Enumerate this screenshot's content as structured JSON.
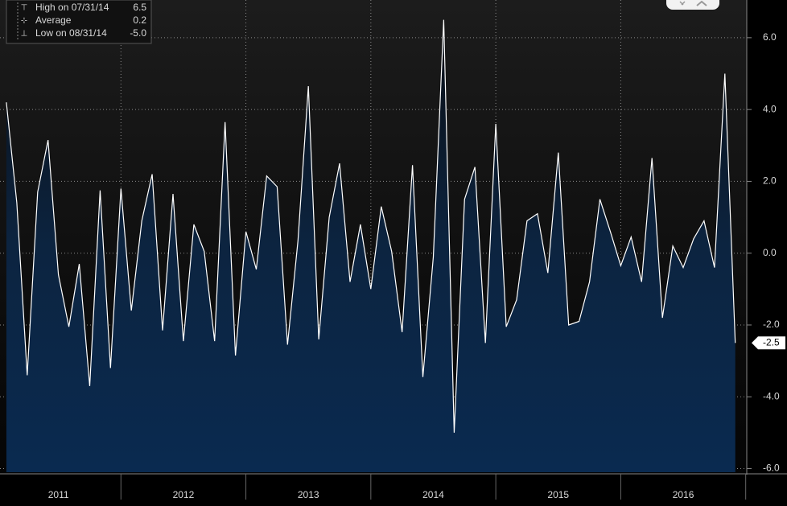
{
  "chart_data": {
    "type": "area",
    "x": [
      "01/31/11",
      "02/28/11",
      "03/31/11",
      "04/30/11",
      "05/31/11",
      "06/30/11",
      "07/31/11",
      "08/31/11",
      "09/30/11",
      "10/31/11",
      "11/30/11",
      "12/31/11",
      "01/31/12",
      "02/29/12",
      "03/31/12",
      "04/30/12",
      "05/31/12",
      "06/30/12",
      "07/31/12",
      "08/31/12",
      "09/30/12",
      "10/31/12",
      "11/30/12",
      "12/31/12",
      "01/31/13",
      "02/28/13",
      "03/31/13",
      "04/30/13",
      "05/31/13",
      "06/30/13",
      "07/31/13",
      "08/31/13",
      "09/30/13",
      "10/31/13",
      "11/30/13",
      "12/31/13",
      "01/31/14",
      "02/28/14",
      "03/31/14",
      "04/30/14",
      "05/31/14",
      "06/30/14",
      "07/31/14",
      "08/31/14",
      "09/30/14",
      "10/31/14",
      "11/30/14",
      "12/31/14",
      "01/31/15",
      "02/28/15",
      "03/31/15",
      "04/30/15",
      "05/31/15",
      "06/30/15",
      "07/31/15",
      "08/31/15",
      "09/30/15",
      "10/31/15",
      "11/30/15",
      "12/31/15",
      "01/31/16",
      "02/29/16",
      "03/31/16",
      "04/30/16",
      "05/31/16",
      "06/30/16",
      "07/31/16",
      "08/31/16",
      "09/30/16",
      "10/31/16",
      "11/30/16"
    ],
    "values": [
      4.2,
      1.4,
      -3.4,
      1.7,
      3.15,
      -0.6,
      -2.05,
      -0.3,
      -3.7,
      1.75,
      -3.2,
      1.8,
      -1.6,
      0.9,
      2.2,
      -2.15,
      1.65,
      -2.45,
      0.8,
      0.05,
      -2.45,
      3.65,
      -2.85,
      0.6,
      -0.45,
      2.15,
      1.85,
      -2.55,
      0.35,
      4.65,
      -2.4,
      1.0,
      2.5,
      -0.8,
      0.8,
      -1.0,
      1.3,
      0.05,
      -2.2,
      2.45,
      -3.45,
      -0.1,
      6.5,
      -5.0,
      1.5,
      2.4,
      -2.5,
      3.6,
      -2.05,
      -1.3,
      0.9,
      1.1,
      -0.55,
      2.8,
      -2.0,
      -1.9,
      -0.8,
      1.5,
      0.6,
      -0.35,
      0.45,
      -0.8,
      2.65,
      -1.8,
      0.2,
      -0.4,
      0.4,
      0.9,
      -0.4,
      5.0,
      -2.5
    ],
    "last_value_label": "-2.5",
    "color": "#ffffff",
    "ylim": [
      -6.1,
      7.05
    ],
    "yticks": [
      {
        "value": 6,
        "label": "6.0"
      },
      {
        "value": 4,
        "label": "4.0"
      },
      {
        "value": 2,
        "label": "2.0"
      },
      {
        "value": 0,
        "label": "0.0"
      },
      {
        "value": -2,
        "label": "-2.0"
      },
      {
        "value": -4,
        "label": "-4.0"
      },
      {
        "value": -6,
        "label": "-6.0"
      }
    ],
    "year_labels": [
      "2011",
      "2012",
      "2013",
      "2014",
      "2015",
      "2016"
    ],
    "grid": true,
    "legend": [
      {
        "label": "High on 07/31/14",
        "value": "6.5"
      },
      {
        "label": "Average",
        "value": "0.2"
      },
      {
        "label": "Low on 08/31/14",
        "value": "-5.0"
      }
    ]
  }
}
